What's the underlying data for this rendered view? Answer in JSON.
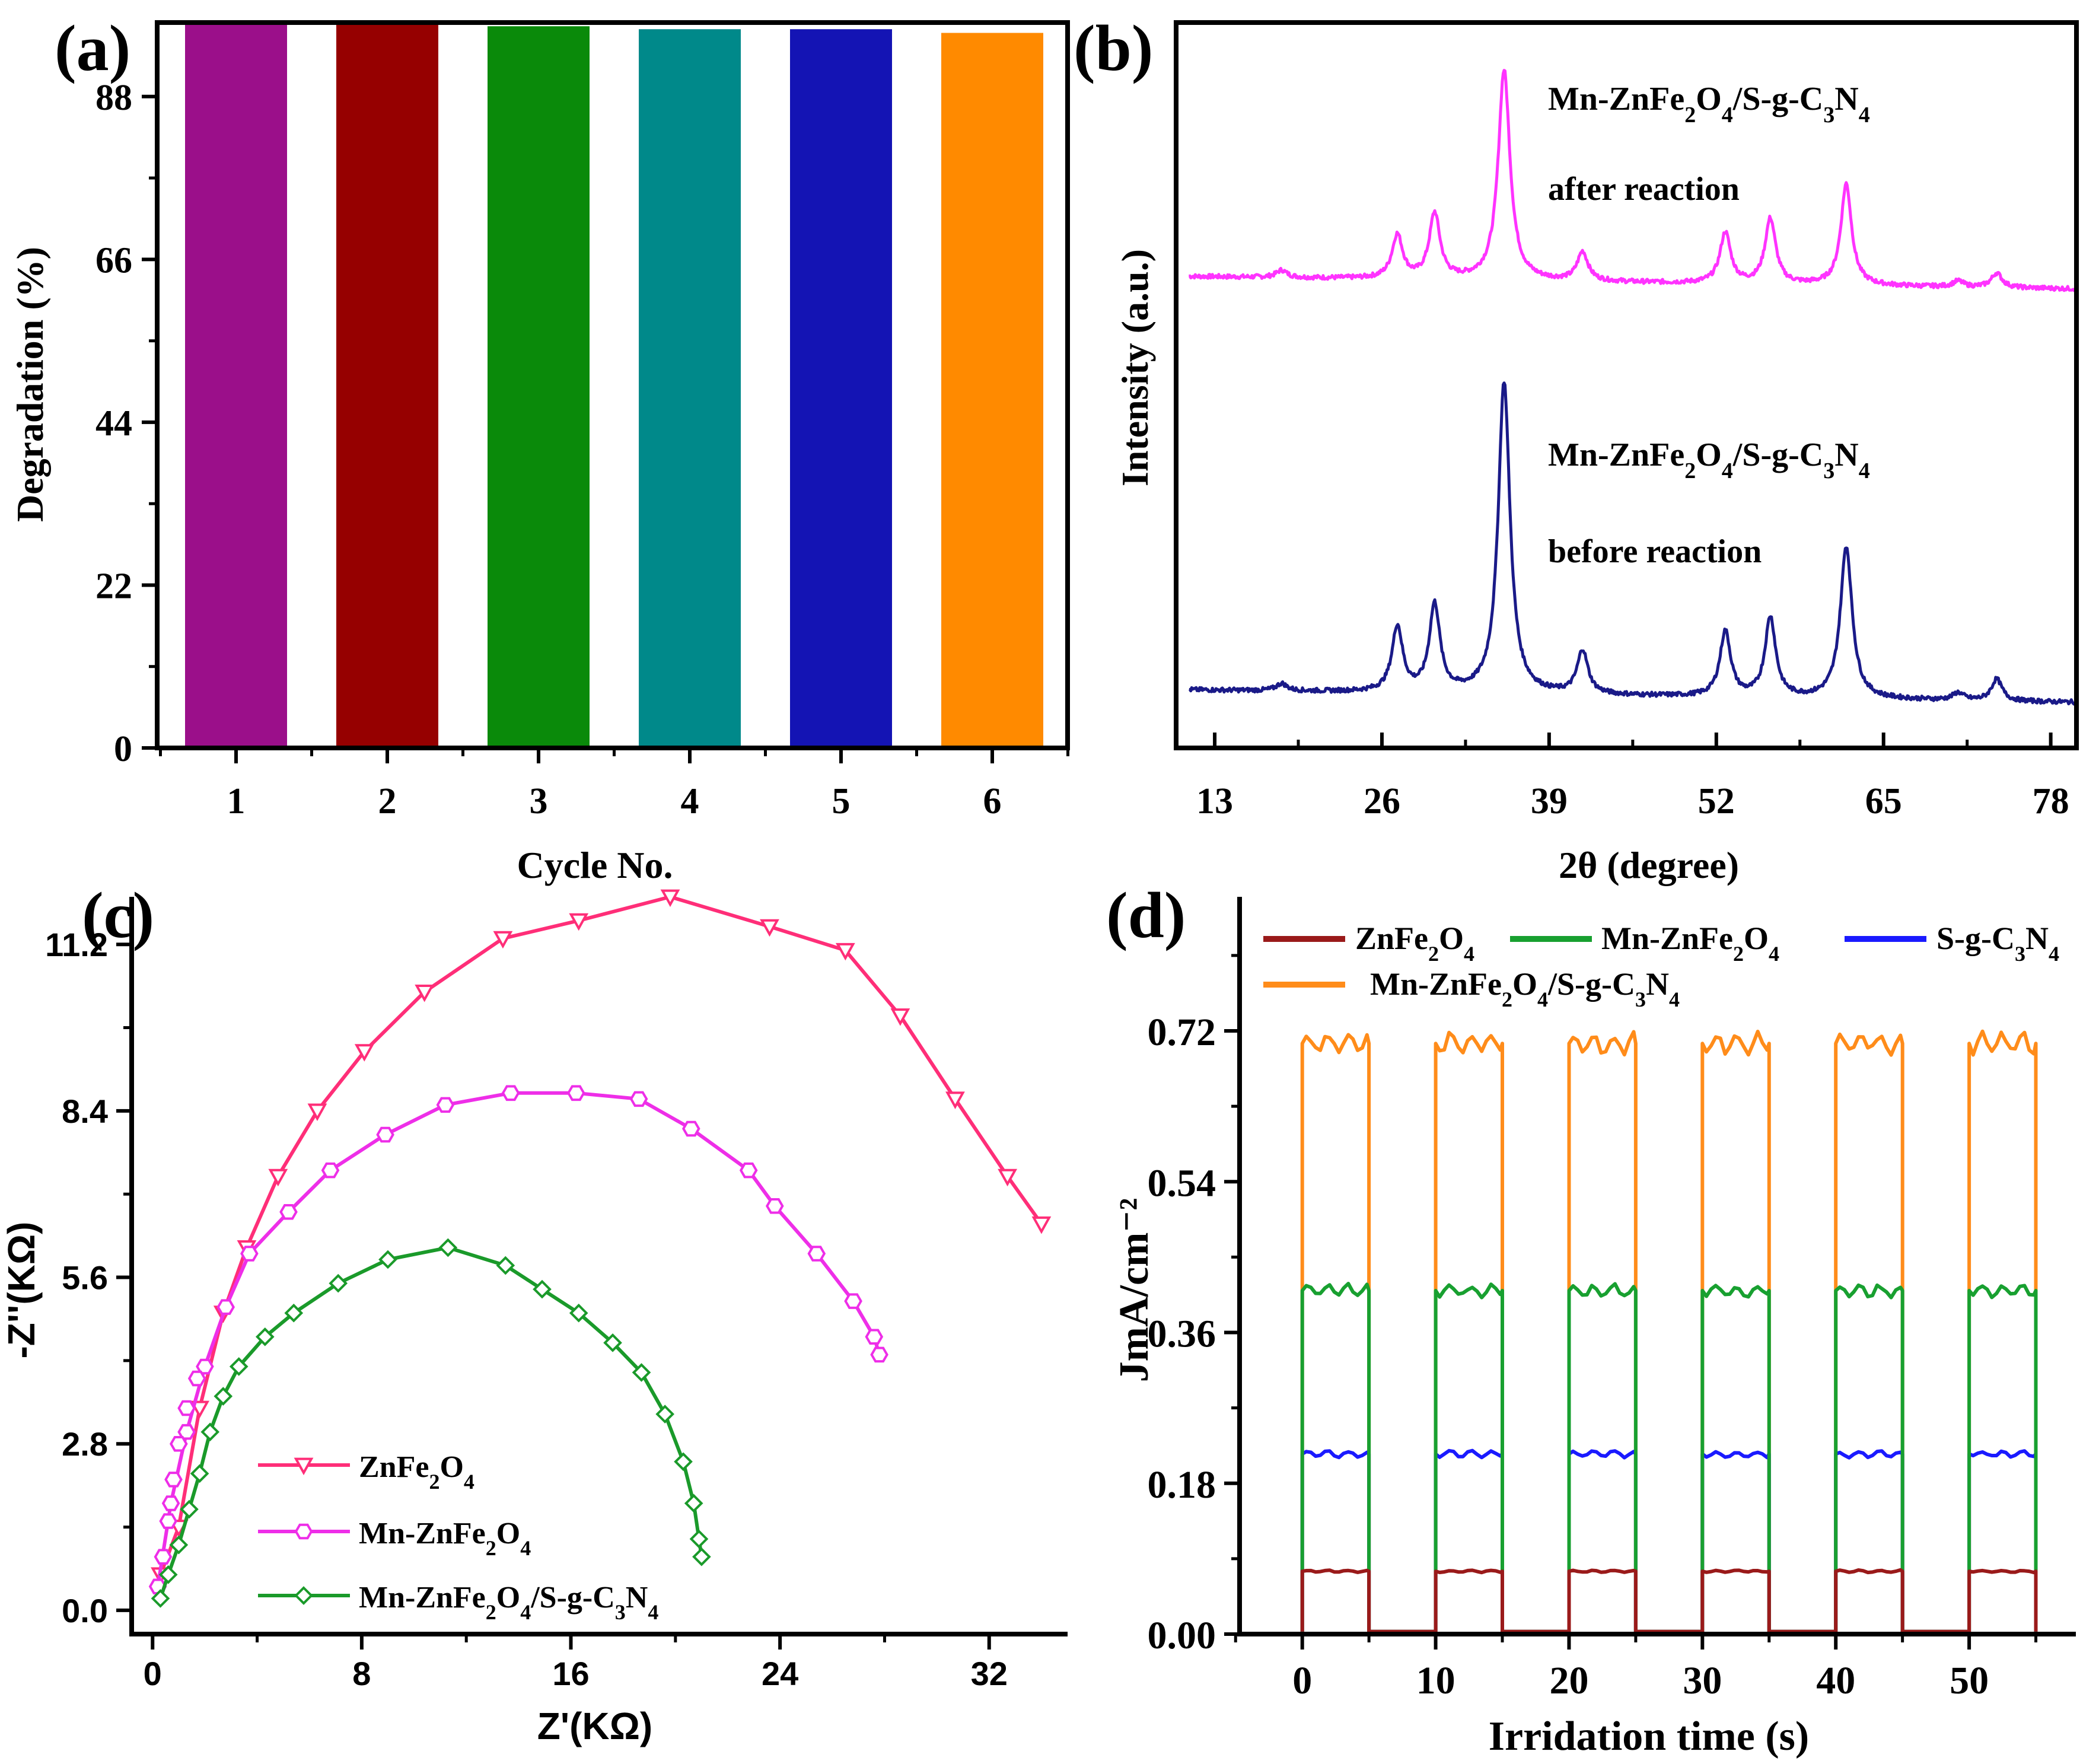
{
  "chart_data": [
    {
      "panel": "(a)",
      "type": "bar",
      "xlabel": "Cycle No.",
      "ylabel": "Degradation (%)",
      "ylim": [
        0,
        98
      ],
      "yticks": [
        "0",
        "22",
        "44",
        "66",
        "88"
      ],
      "categories": [
        "1",
        "2",
        "3",
        "4",
        "5",
        "6"
      ],
      "values": [
        98.0,
        97.8,
        97.5,
        97.1,
        97.1,
        96.6
      ],
      "colors": [
        "#9b0f8a",
        "#960000",
        "#0a8a0a",
        "#00898a",
        "#1414b4",
        "#ff8a00"
      ]
    },
    {
      "panel": "(b)",
      "type": "line",
      "xlabel": "2θ (degree)",
      "ylabel": "Intensity (a.u.)",
      "xlim": [
        10,
        80
      ],
      "ylim": [
        0,
        100
      ],
      "xticks": [
        "13",
        "26",
        "39",
        "52",
        "65",
        "78"
      ],
      "series": [
        {
          "name": "after reaction",
          "label_line1": "Mn-ZnFe₂O₄/S-g-C₃N₄",
          "label_line2": "after reaction",
          "color": "#ff33ff",
          "baseline": 65,
          "peaks": [
            [
              18.2,
              1
            ],
            [
              27.2,
              6
            ],
            [
              30.1,
              9
            ],
            [
              35.5,
              29
            ],
            [
              41.6,
              4
            ],
            [
              52.7,
              7
            ],
            [
              56.2,
              9
            ],
            [
              62.1,
              14
            ],
            [
              70.8,
              0.8
            ],
            [
              73.8,
              2
            ]
          ]
        },
        {
          "name": "before reaction",
          "label_line1": "Mn-ZnFe₂O₄/S-g-C₃N₄",
          "label_line2": "before reaction",
          "color": "#1a1a88",
          "baseline": 8,
          "peaks": [
            [
              18.2,
              1
            ],
            [
              27.2,
              9
            ],
            [
              30.1,
              12
            ],
            [
              35.5,
              43
            ],
            [
              41.6,
              6
            ],
            [
              52.7,
              9
            ],
            [
              56.2,
              11
            ],
            [
              62.1,
              21
            ],
            [
              70.8,
              1
            ],
            [
              73.8,
              3
            ]
          ]
        }
      ]
    },
    {
      "panel": "(c)",
      "type": "line",
      "xlabel": "Z'(KΩ)",
      "ylabel": "-Z''(KΩ)",
      "xlim": [
        -0.8,
        35
      ],
      "ylim": [
        -0.4,
        12
      ],
      "xticks": [
        "0",
        "8",
        "16",
        "24",
        "32"
      ],
      "yticks": [
        "0.0",
        "2.8",
        "5.6",
        "8.4",
        "11.2"
      ],
      "series": [
        {
          "name": "ZnFe₂O₄",
          "color": "#ff2e78",
          "marker": "triangle-down",
          "x": [
            0.3,
            1.0,
            1.8,
            2.7,
            3.6,
            4.8,
            6.3,
            8.1,
            10.4,
            13.4,
            16.3,
            19.8,
            23.6,
            26.5,
            28.6,
            30.7,
            32.7,
            34.0
          ],
          "y": [
            0.6,
            1.4,
            3.4,
            5.0,
            6.1,
            7.3,
            8.4,
            9.4,
            10.4,
            11.3,
            11.6,
            12.0,
            11.5,
            11.1,
            10.0,
            8.6,
            7.3,
            6.5
          ]
        },
        {
          "name": "Mn-ZnFe₂O₄",
          "color": "#ee2ee8",
          "marker": "hexagon",
          "x": [
            0.2,
            0.7,
            1.3,
            2.0,
            2.8,
            3.7,
            5.2,
            6.8,
            8.9,
            11.2,
            13.7,
            16.2,
            18.6,
            20.6,
            22.8,
            23.8,
            25.4,
            26.8,
            27.6,
            27.8
          ],
          "y": [
            0.4,
            1.8,
            3.0,
            4.1,
            5.1,
            6.0,
            6.7,
            7.4,
            8.0,
            8.5,
            8.7,
            8.7,
            8.6,
            8.1,
            7.4,
            6.8,
            6.0,
            5.2,
            4.6,
            4.3
          ],
          "points_only": [
            [
              0.4,
              0.9
            ],
            [
              0.6,
              1.5
            ],
            [
              0.8,
              2.2
            ],
            [
              1.0,
              2.8
            ],
            [
              1.3,
              3.4
            ],
            [
              1.7,
              3.9
            ]
          ]
        },
        {
          "name": "Mn-ZnFe₂O₄/S-g-C₃N₄",
          "color": "#1a9a2a",
          "marker": "diamond",
          "x": [
            0.3,
            0.6,
            1.0,
            1.4,
            1.8,
            2.2,
            2.7,
            3.3,
            4.3,
            5.4,
            7.1,
            9.0,
            11.3,
            13.5,
            14.9,
            16.3,
            17.6,
            18.7,
            19.6,
            20.3,
            20.7,
            20.9,
            21.0
          ],
          "y": [
            0.2,
            0.6,
            1.1,
            1.7,
            2.3,
            3.0,
            3.6,
            4.1,
            4.6,
            5.0,
            5.5,
            5.9,
            6.1,
            5.8,
            5.4,
            5.0,
            4.5,
            4.0,
            3.3,
            2.5,
            1.8,
            1.2,
            0.9
          ]
        }
      ]
    },
    {
      "panel": "(d)",
      "type": "line",
      "xlabel": "Irridation time (s)",
      "ylabel": "JmA/cm⁻²",
      "xlim": [
        -4.7,
        58
      ],
      "ylim": [
        0,
        0.88
      ],
      "xticks": [
        "0",
        "10",
        "20",
        "30",
        "40",
        "50"
      ],
      "yticks": [
        "0.00",
        "0.18",
        "0.36",
        "0.54",
        "0.72"
      ],
      "cycles_on": [
        [
          0,
          5
        ],
        [
          10,
          15
        ],
        [
          20,
          25
        ],
        [
          30,
          35
        ],
        [
          40,
          45
        ],
        [
          50,
          55
        ]
      ],
      "series": [
        {
          "name": "ZnFe₂O₄",
          "color": "#9a1a1a",
          "on_level": 0.075
        },
        {
          "name": "Mn-ZnFe₂O₄",
          "color": "#18a030",
          "on_level": 0.41
        },
        {
          "name": "S-g-C₃N₄",
          "color": "#1a1aff",
          "on_level": 0.215
        },
        {
          "name": "Mn-ZnFe₂O₄/S-g-C₃N₄",
          "color": "#ff8c1a",
          "on_level": 0.705
        }
      ]
    }
  ],
  "panel_labels": [
    "(a)",
    "(b)",
    "(c)",
    "(d)"
  ]
}
